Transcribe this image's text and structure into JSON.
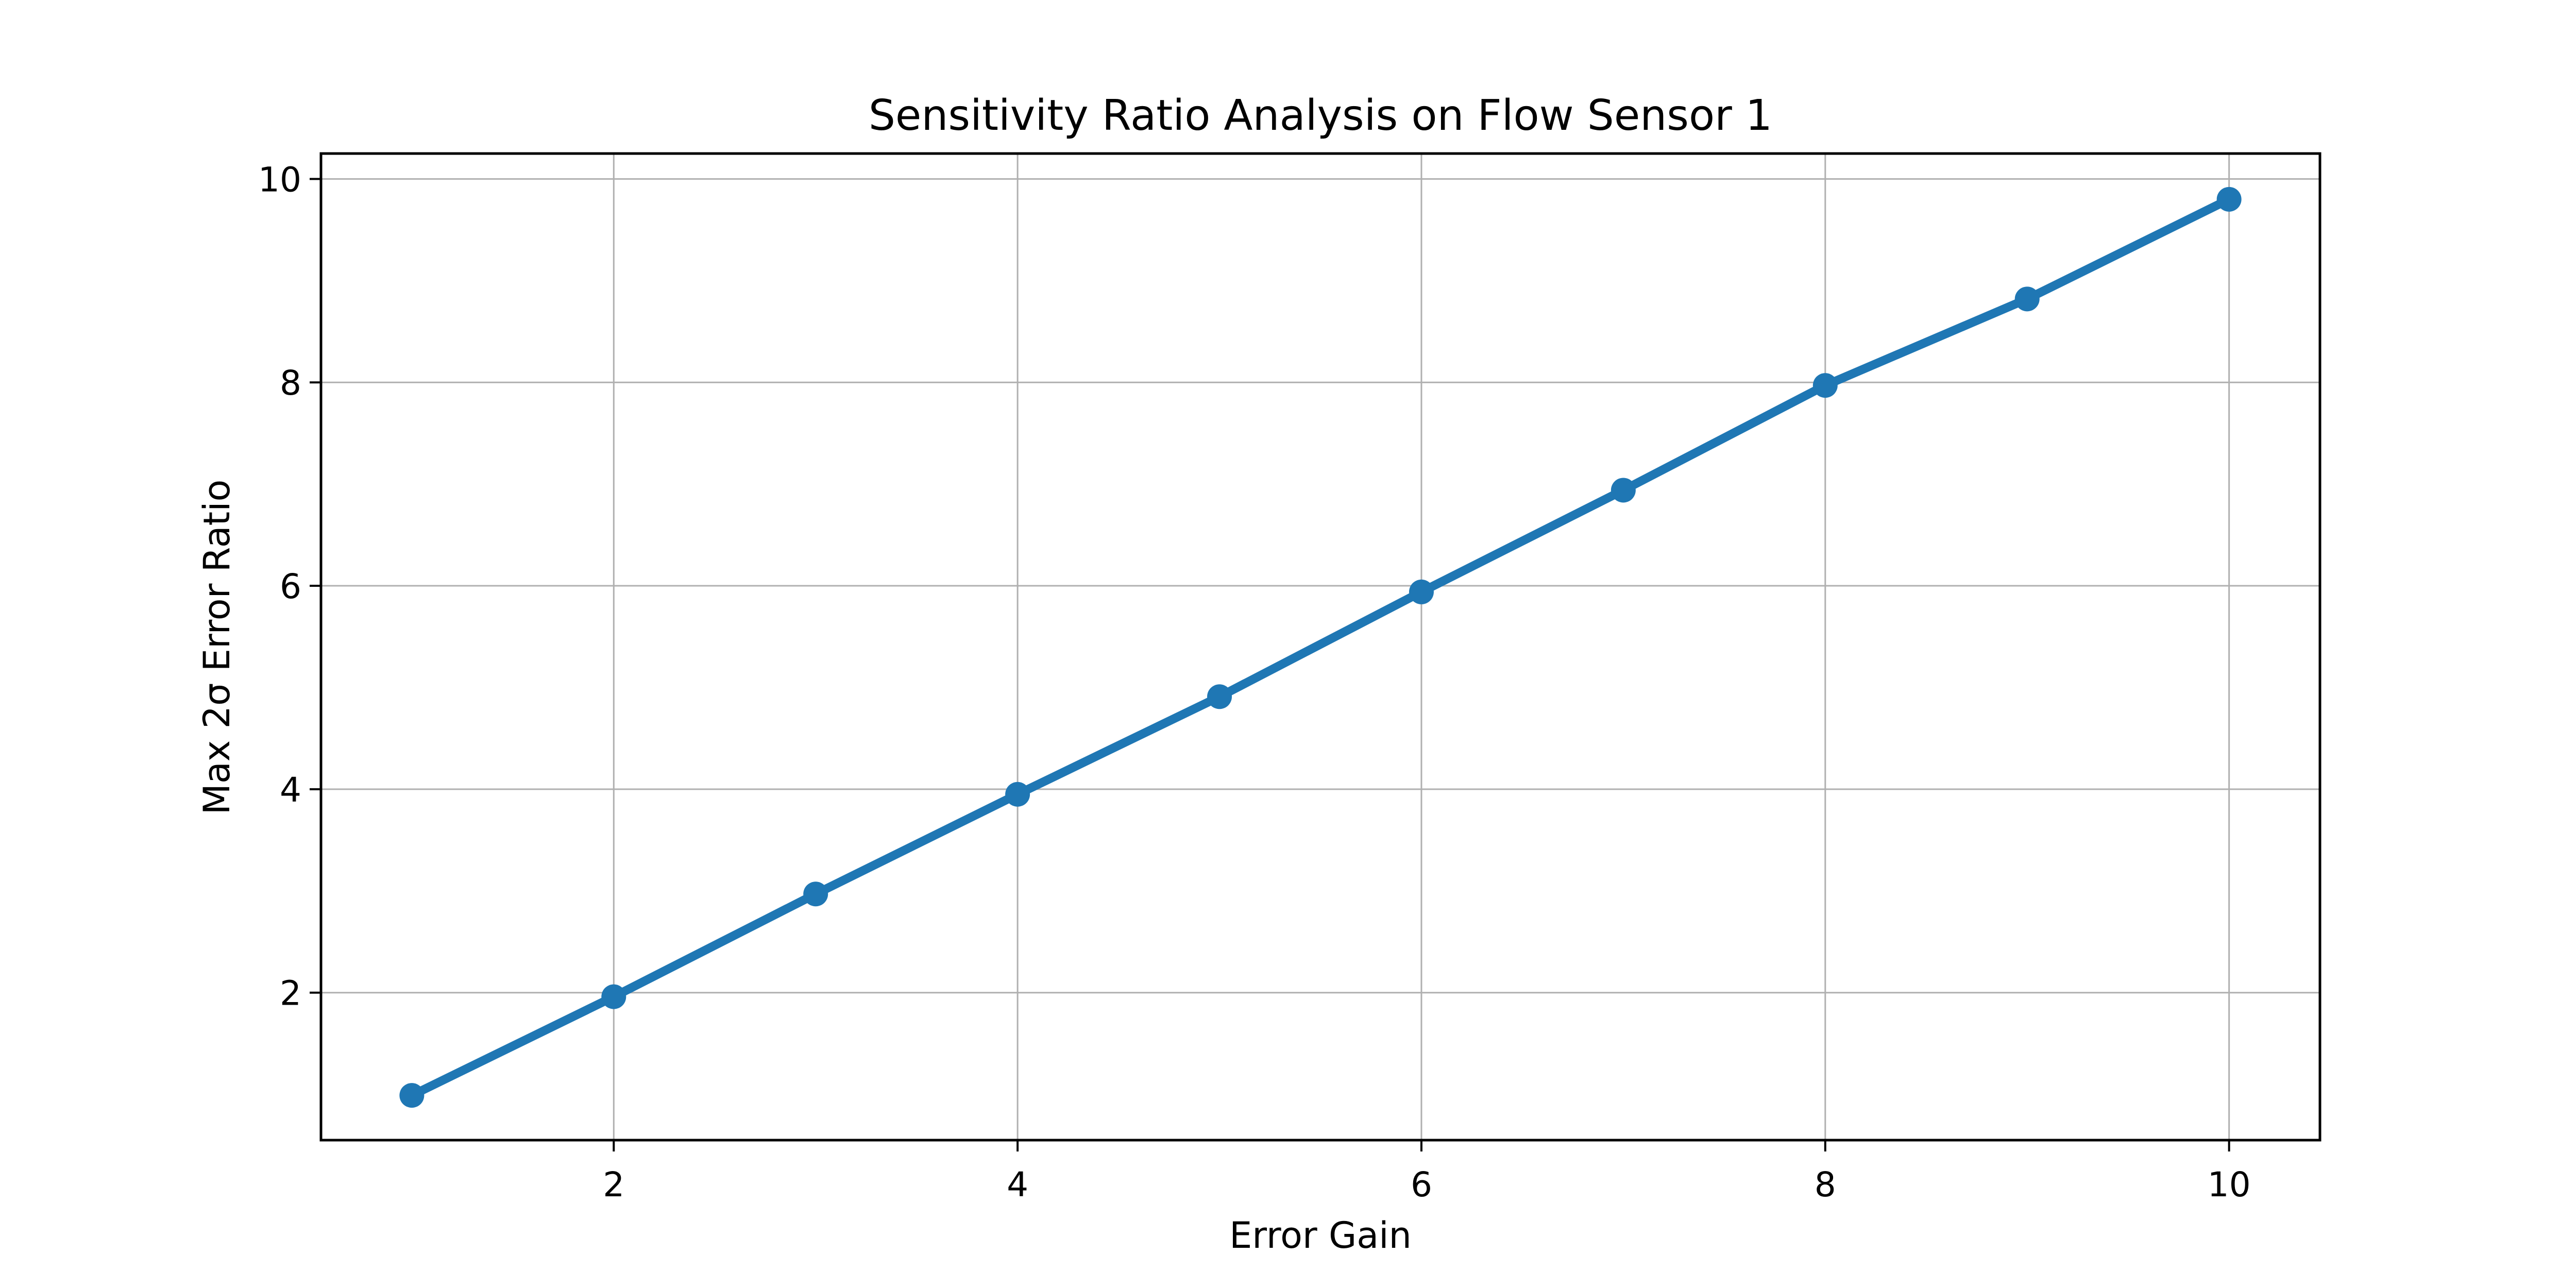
{
  "figure": {
    "background": "#ffffff"
  },
  "chart_data": {
    "type": "line",
    "title": "Sensitivity Ratio Analysis on Flow Sensor 1",
    "xlabel": "Error Gain",
    "ylabel": "Max 2σ Error Ratio",
    "x": [
      1,
      2,
      3,
      4,
      5,
      6,
      7,
      8,
      9,
      10
    ],
    "y": [
      0.99,
      1.96,
      2.97,
      3.95,
      4.91,
      5.94,
      6.94,
      7.97,
      8.82,
      9.8
    ],
    "xlim": [
      0.55,
      10.45
    ],
    "ylim": [
      0.55,
      10.25
    ],
    "xticks": [
      2,
      4,
      6,
      8,
      10
    ],
    "yticks": [
      2,
      4,
      6,
      8,
      10
    ],
    "xtick_labels": [
      "2",
      "4",
      "6",
      "8",
      "10"
    ],
    "ytick_labels": [
      "2",
      "4",
      "6",
      "8",
      "10"
    ],
    "grid": true,
    "legend_position": "none",
    "line_color": "#1f77b4",
    "marker": "o",
    "marker_color": "#1f77b4",
    "grid_color": "#b0b0b0",
    "axis_color": "#000000"
  }
}
